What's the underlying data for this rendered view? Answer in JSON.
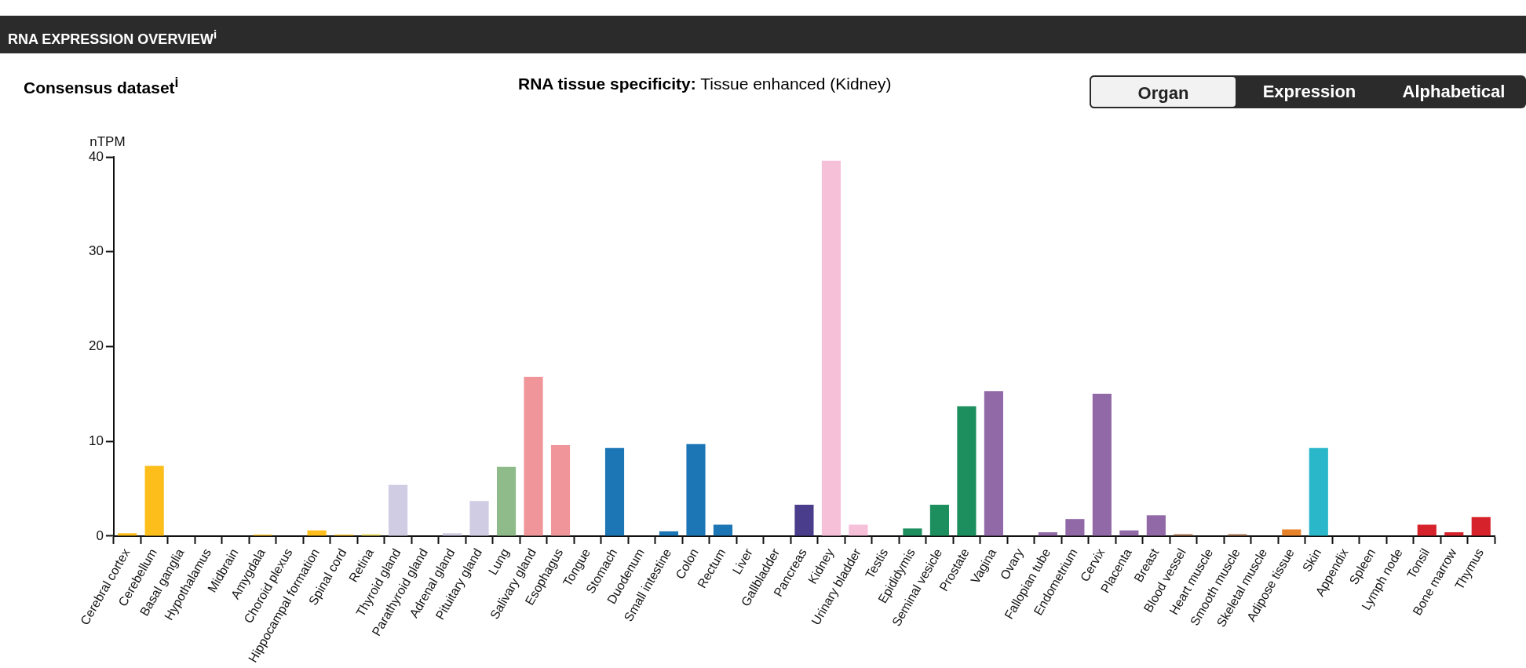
{
  "chart_data": {
    "type": "bar",
    "title": "RNA EXPRESSION OVERVIEW$^{i}$",
    "subtitle": "Consensus dataset$^{i}$",
    "annotations": [
      "RNA tissue specificity: Tissue enhanced (Kidney)",
      "Organ",
      "Expression",
      "Alphabetical"
    ],
    "ylabel": "nTPM",
    "ylim": [
      0,
      40
    ],
    "yticks": [
      0,
      10,
      20,
      30,
      40
    ],
    "grid": false,
    "legend": false,
    "categories": [
      "Cerebral cortex",
      "Cerebellum",
      "Basal ganglia",
      "Hypothalamus",
      "Midbrain",
      "Amygdala",
      "Choroid plexus",
      "Hippocampal formation",
      "Spinal cord",
      "Retina",
      "Thyroid gland",
      "Parathyroid gland",
      "Adrenal gland",
      "Pituitary gland",
      "Lung",
      "Salivary gland",
      "Esophagus",
      "Tongue",
      "Stomach",
      "Duodenum",
      "Small intestine",
      "Colon",
      "Rectum",
      "Liver",
      "Gallbladder",
      "Pancreas",
      "Kidney",
      "Urinary bladder",
      "Testis",
      "Epididymis",
      "Seminal vesicle",
      "Prostate",
      "Vagina",
      "Ovary",
      "Fallopian tube",
      "Endometrium",
      "Cervix",
      "Placenta",
      "Breast",
      "Blood vessel",
      "Heart muscle",
      "Smooth muscle",
      "Skeletal muscle",
      "Adipose tissue",
      "Skin",
      "Appendix",
      "Spleen",
      "Lymph node",
      "Tonsil",
      "Bone marrow",
      "Thymus"
    ],
    "values": [
      0.3,
      7.4,
      0,
      0,
      0,
      0.15,
      0,
      0.6,
      0.15,
      0.2,
      5.4,
      0,
      0.3,
      3.7,
      7.3,
      16.8,
      9.6,
      0,
      9.3,
      0,
      0.5,
      9.7,
      1.2,
      0,
      0,
      3.3,
      39.6,
      1.2,
      0,
      0.8,
      3.3,
      13.7,
      15.3,
      0,
      0.4,
      1.8,
      15.0,
      0.6,
      2.2,
      0.2,
      0,
      0.2,
      0,
      0.7,
      9.3,
      0,
      0,
      0,
      1.2,
      0.4,
      2.0
    ],
    "colors": [
      "#fdbd1a",
      "#fdbd1a",
      "#fdbd1a",
      "#fdbd1a",
      "#fdbd1a",
      "#fdbd1a",
      "#fdbd1a",
      "#fdbd1a",
      "#fdbd1a",
      "#f3e16a",
      "#d0cce4",
      "#d0cce4",
      "#d0cce4",
      "#d0cce4",
      "#8fbb8a",
      "#f09599",
      "#f09599",
      "#f09599",
      "#1c75b4",
      "#1c75b4",
      "#1c75b4",
      "#1c75b4",
      "#1c75b4",
      "#1c75b4",
      "#1c75b4",
      "#4a3d8c",
      "#f7c0d9",
      "#f7c0d9",
      "#1d8f5e",
      "#1d8f5e",
      "#1d8f5e",
      "#1d8f5e",
      "#9169a7",
      "#9169a7",
      "#9169a7",
      "#9169a7",
      "#9169a7",
      "#9169a7",
      "#9169a7",
      "#b07a55",
      "#b07a55",
      "#b07a55",
      "#b07a55",
      "#e6832a",
      "#29b7c9",
      "#d6222b",
      "#d6222b",
      "#d6222b",
      "#d6222b",
      "#d6222b",
      "#d6222b"
    ]
  }
}
